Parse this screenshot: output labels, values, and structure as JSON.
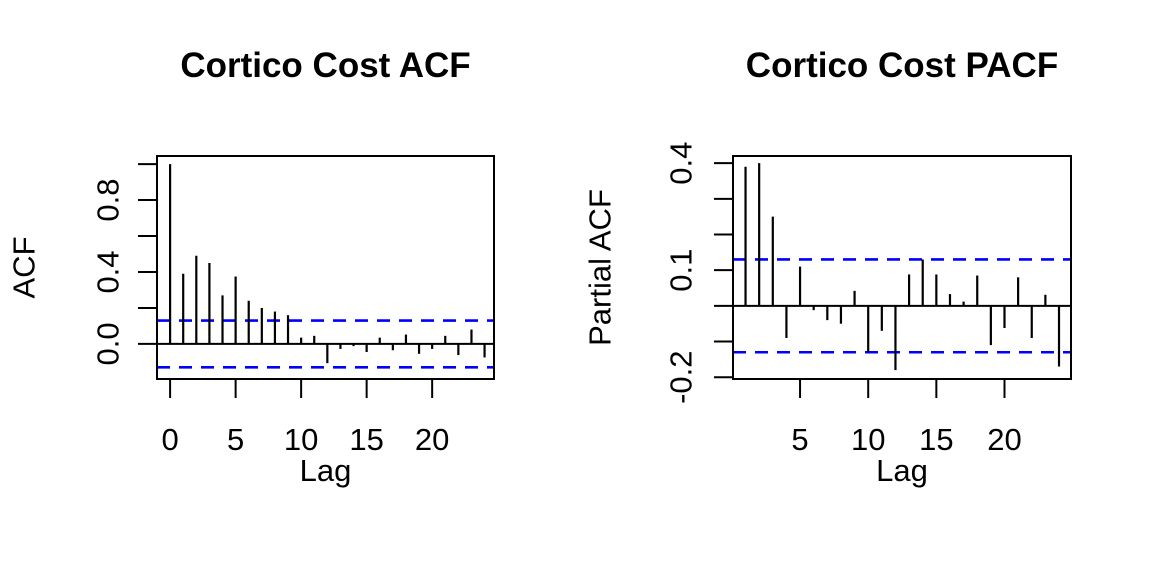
{
  "page": {
    "background": "#FFFFFF"
  },
  "chart_data": [
    {
      "type": "bar",
      "variant": "acf-correlogram",
      "title": "Cortico Cost ACF",
      "xlabel": "Lag",
      "ylabel": "ACF",
      "lag_start": 0,
      "lags": [
        0,
        1,
        2,
        3,
        4,
        5,
        6,
        7,
        8,
        9,
        10,
        11,
        12,
        13,
        14,
        15,
        16,
        17,
        18,
        19,
        20,
        21,
        22,
        23,
        24
      ],
      "values": [
        1.0,
        0.39,
        0.49,
        0.45,
        0.27,
        0.375,
        0.24,
        0.2,
        0.18,
        0.16,
        0.035,
        0.045,
        -0.107,
        -0.028,
        -0.012,
        -0.045,
        0.035,
        -0.035,
        0.052,
        -0.055,
        -0.028,
        0.045,
        -0.062,
        0.08,
        -0.075
      ],
      "conf_band": 0.13,
      "conf_line_style": "dashed",
      "ylim": [
        -0.195,
        1.045
      ],
      "xlim": [
        -1.0,
        24.72
      ],
      "yticks": [
        {
          "v": 0.0,
          "label": "0.0"
        },
        {
          "v": 0.2,
          "label": ""
        },
        {
          "v": 0.4,
          "label": "0.4"
        },
        {
          "v": 0.6,
          "label": ""
        },
        {
          "v": 0.8,
          "label": "0.8"
        },
        {
          "v": 1.0,
          "label": ""
        }
      ],
      "xticks": [
        {
          "v": 0,
          "label": "0"
        },
        {
          "v": 5,
          "label": "5"
        },
        {
          "v": 10,
          "label": "10"
        },
        {
          "v": 15,
          "label": "15"
        },
        {
          "v": 20,
          "label": "20"
        }
      ],
      "bar_color": "#000000",
      "axis_color": "#000000",
      "conf_color": "#0000FF",
      "grid": false,
      "legend": "none"
    },
    {
      "type": "bar",
      "variant": "pacf-correlogram",
      "title": "Cortico Cost PACF",
      "xlabel": "Lag",
      "ylabel": "Partial ACF",
      "lag_start": 1,
      "lags": [
        1,
        2,
        3,
        4,
        5,
        6,
        7,
        8,
        9,
        10,
        11,
        12,
        13,
        14,
        15,
        16,
        17,
        18,
        19,
        20,
        21,
        22,
        23,
        24
      ],
      "values": [
        0.39,
        0.4,
        0.25,
        -0.09,
        0.11,
        -0.012,
        -0.04,
        -0.05,
        0.042,
        -0.13,
        -0.07,
        -0.18,
        0.088,
        0.13,
        0.088,
        0.033,
        0.012,
        0.085,
        -0.11,
        -0.062,
        0.08,
        -0.09,
        0.031,
        -0.17
      ],
      "conf_band": 0.13,
      "conf_line_style": "dashed",
      "ylim": [
        -0.205,
        0.42
      ],
      "xlim": [
        0.08,
        24.88
      ],
      "yticks": [
        {
          "v": -0.2,
          "label": "-0.2"
        },
        {
          "v": -0.1,
          "label": ""
        },
        {
          "v": 0.0,
          "label": ""
        },
        {
          "v": 0.1,
          "label": "0.1"
        },
        {
          "v": 0.2,
          "label": ""
        },
        {
          "v": 0.3,
          "label": ""
        },
        {
          "v": 0.4,
          "label": "0.4"
        }
      ],
      "xticks": [
        {
          "v": 5,
          "label": "5"
        },
        {
          "v": 10,
          "label": "10"
        },
        {
          "v": 15,
          "label": "15"
        },
        {
          "v": 20,
          "label": "20"
        }
      ],
      "bar_color": "#000000",
      "axis_color": "#000000",
      "conf_color": "#0000FF",
      "grid": false,
      "legend": "none"
    }
  ]
}
